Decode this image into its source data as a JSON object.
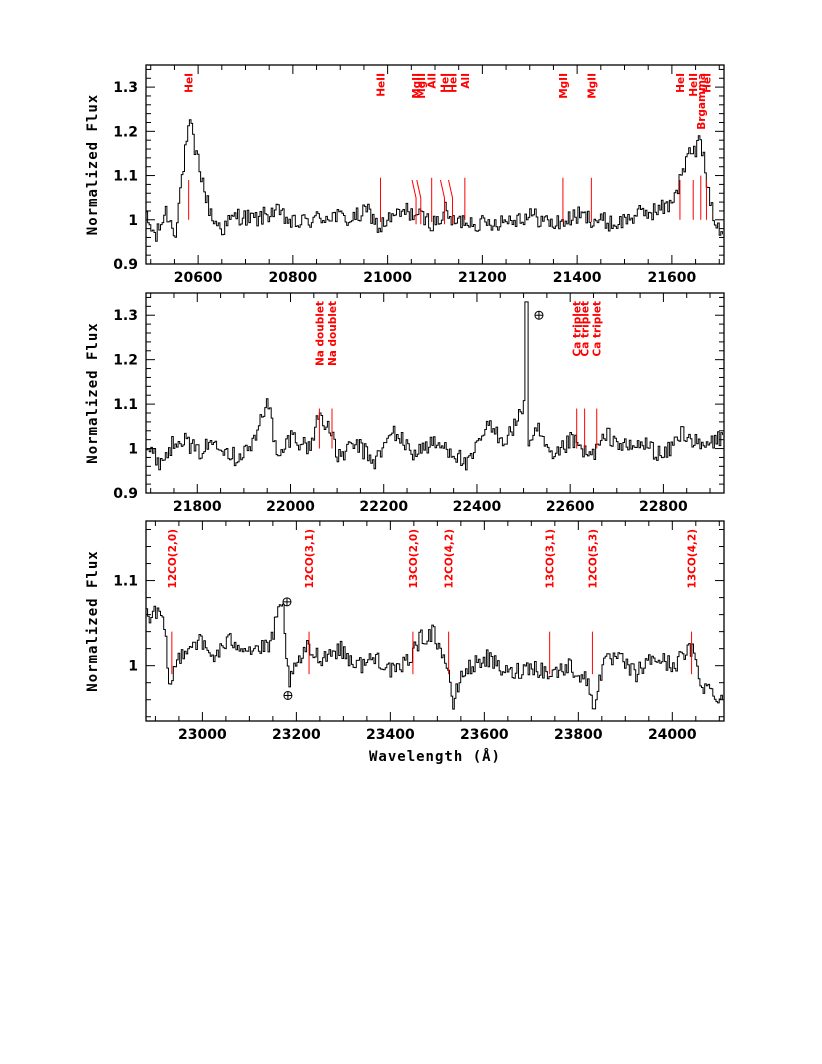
{
  "chart_data": [
    {
      "type": "line",
      "panel": "top",
      "xlim": [
        20490,
        21710
      ],
      "ylim": [
        0.9,
        1.35
      ],
      "xticks": [
        20600,
        20800,
        21000,
        21200,
        21400,
        21600
      ],
      "yticks": [
        0.9,
        1,
        1.1,
        1.2,
        1.3
      ],
      "ylabel": "Normalized Flux",
      "xlabel": "",
      "spectrum": {
        "x": [
          20490,
          20510,
          20530,
          20550,
          20565,
          20575,
          20583,
          20590,
          20600,
          20615,
          20630,
          20650,
          20680,
          20720,
          20760,
          20800,
          20840,
          20880,
          20920,
          20960,
          20980,
          21000,
          21040,
          21060,
          21080,
          21100,
          21120,
          21140,
          21160,
          21200,
          21250,
          21300,
          21350,
          21380,
          21400,
          21440,
          21480,
          21520,
          21560,
          21590,
          21610,
          21625,
          21640,
          21650,
          21658,
          21665,
          21675,
          21690,
          21710
        ],
        "y": [
          1.0,
          0.96,
          1.02,
          0.97,
          1.1,
          1.18,
          1.22,
          1.16,
          1.13,
          1.05,
          1.0,
          0.98,
          1.01,
          1.0,
          1.02,
          0.99,
          1.0,
          1.01,
          1.0,
          1.02,
          0.98,
          1.0,
          1.02,
          1.01,
          1.0,
          0.99,
          1.02,
          0.99,
          1.0,
          0.99,
          1.0,
          1.01,
          0.99,
          1.0,
          1.01,
          1.0,
          0.99,
          1.01,
          1.02,
          1.03,
          1.07,
          1.12,
          1.16,
          1.15,
          1.2,
          1.14,
          1.07,
          1.0,
          0.97
        ]
      },
      "lines": [
        {
          "label": "HeI",
          "x": 20580,
          "ymin": 1.0,
          "ymax": 1.09
        },
        {
          "label": "HeII",
          "x": 20985,
          "ymin": 0.995,
          "ymax": 1.095
        },
        {
          "label": "MgII",
          "x": 21060,
          "ymin": 0.99,
          "ymax": 1.09,
          "fork": true
        },
        {
          "label": "MgII",
          "x": 21070,
          "ymin": 0.99,
          "ymax": 1.09,
          "fork": true
        },
        {
          "label": "AlI",
          "x": 21093,
          "ymin": 0.995,
          "ymax": 1.095
        },
        {
          "label": "HeI",
          "x": 21120,
          "ymin": 0.99,
          "ymax": 1.09,
          "fork": true
        },
        {
          "label": "HeI",
          "x": 21137,
          "ymin": 0.99,
          "ymax": 1.09,
          "fork": true
        },
        {
          "label": "AlI",
          "x": 21163,
          "ymin": 1.0,
          "ymax": 1.095
        },
        {
          "label": "MgII",
          "x": 21370,
          "ymin": 0.995,
          "ymax": 1.095
        },
        {
          "label": "MgII",
          "x": 21430,
          "ymin": 0.995,
          "ymax": 1.095
        },
        {
          "label": "HeI",
          "x": 21617,
          "ymin": 1.0,
          "ymax": 1.09
        },
        {
          "label": "HeII",
          "x": 21645,
          "ymin": 1.0,
          "ymax": 1.09
        },
        {
          "label": "Brgamma",
          "x": 21661,
          "ymin": 1.0,
          "ymax": 1.1
        },
        {
          "label": "HeI",
          "x": 21673,
          "ymin": 1.0,
          "ymax": 1.09
        }
      ]
    },
    {
      "type": "line",
      "panel": "middle",
      "xlim": [
        21690,
        22930
      ],
      "ylim": [
        0.9,
        1.35
      ],
      "xticks": [
        21800,
        22000,
        22200,
        22400,
        22600,
        22800
      ],
      "yticks": [
        0.9,
        1,
        1.1,
        1.2,
        1.3
      ],
      "ylabel": "Normalized Flux",
      "xlabel": "",
      "spectrum": {
        "x": [
          21690,
          21720,
          21760,
          21800,
          21840,
          21880,
          21920,
          21950,
          21970,
          22000,
          22040,
          22060,
          22080,
          22100,
          22140,
          22180,
          22220,
          22260,
          22300,
          22340,
          22380,
          22420,
          22460,
          22490,
          22500,
          22505,
          22510,
          22530,
          22560,
          22600,
          22640,
          22680,
          22720,
          22760,
          22800,
          22840,
          22880,
          22930
        ],
        "y": [
          1.0,
          0.97,
          1.03,
          0.99,
          1.02,
          0.98,
          1.01,
          1.12,
          0.97,
          1.03,
          1.0,
          1.08,
          1.05,
          0.98,
          1.01,
          0.97,
          1.04,
          0.99,
          1.01,
          1.0,
          0.96,
          1.05,
          1.02,
          1.07,
          1.11,
          1.33,
          1.0,
          1.04,
          0.97,
          1.02,
          0.98,
          1.03,
          1.0,
          1.01,
          0.98,
          1.04,
          1.0,
          1.03
        ]
      },
      "earth_marker_x": 22505,
      "lines": [
        {
          "label": "Na doublet",
          "x": 22062,
          "ymin": 1.0,
          "ymax": 1.09
        },
        {
          "label": "Na doublet",
          "x": 22089,
          "ymin": 1.0,
          "ymax": 1.09
        },
        {
          "label": "Ca triplet",
          "x": 22614,
          "ymin": 1.0,
          "ymax": 1.09
        },
        {
          "label": "Ca triplet",
          "x": 22631,
          "ymin": 1.0,
          "ymax": 1.09
        },
        {
          "label": "Ca triplet",
          "x": 22657,
          "ymin": 1.0,
          "ymax": 1.09
        }
      ]
    },
    {
      "type": "line",
      "panel": "bottom",
      "xlim": [
        22880,
        24110
      ],
      "ylim": [
        0.935,
        1.17
      ],
      "xticks": [
        23000,
        23200,
        23400,
        23600,
        23800,
        24000
      ],
      "yticks": [
        1,
        1.1
      ],
      "ylabel": "Normalized Flux",
      "xlabel": "Wavelength (Å)",
      "spectrum": {
        "x": [
          22910,
          22920,
          22930,
          22940,
          22960,
          22990,
          23020,
          23060,
          23100,
          23140,
          23160,
          23170,
          23175,
          23185,
          23200,
          23220,
          23250,
          23290,
          23330,
          23370,
          23410,
          23440,
          23460,
          23490,
          23520,
          23530,
          23550,
          23600,
          23650,
          23700,
          23740,
          23780,
          23820,
          23830,
          23850,
          23880,
          23920,
          23960,
          24000,
          24040,
          24060,
          24080,
          24110
        ],
        "y": [
          1.06,
          1.03,
          0.97,
          1.0,
          1.02,
          1.03,
          1.01,
          1.03,
          1.02,
          1.02,
          1.06,
          1.07,
          1.02,
          0.98,
          1.0,
          1.02,
          1.01,
          1.02,
          1.0,
          1.01,
          0.99,
          1.01,
          1.03,
          1.04,
          1.0,
          0.95,
          0.99,
          1.01,
          0.99,
          1.0,
          0.99,
          1.0,
          0.98,
          0.95,
          1.0,
          1.01,
          0.99,
          1.01,
          1.0,
          1.02,
          0.98,
          0.97,
          0.96
        ]
      },
      "earth_marker_x": [
        23180,
        23182
      ],
      "earth_marker_y": [
        1.075,
        0.965
      ],
      "lines": [
        {
          "label": "12CO(2,0)",
          "x": 22935,
          "ymin": 0.99,
          "ymax": 1.04
        },
        {
          "label": "12CO(3,1)",
          "x": 23227,
          "ymin": 0.99,
          "ymax": 1.04
        },
        {
          "label": "13CO(2,0)",
          "x": 23448,
          "ymin": 0.99,
          "ymax": 1.04
        },
        {
          "label": "12CO(4,2)",
          "x": 23524,
          "ymin": 0.99,
          "ymax": 1.04
        },
        {
          "label": "13CO(3,1)",
          "x": 23739,
          "ymin": 0.99,
          "ymax": 1.04
        },
        {
          "label": "12CO(5,3)",
          "x": 23830,
          "ymin": 0.99,
          "ymax": 1.04
        },
        {
          "label": "13CO(4,2)",
          "x": 24041,
          "ymin": 0.99,
          "ymax": 1.04
        }
      ]
    }
  ]
}
